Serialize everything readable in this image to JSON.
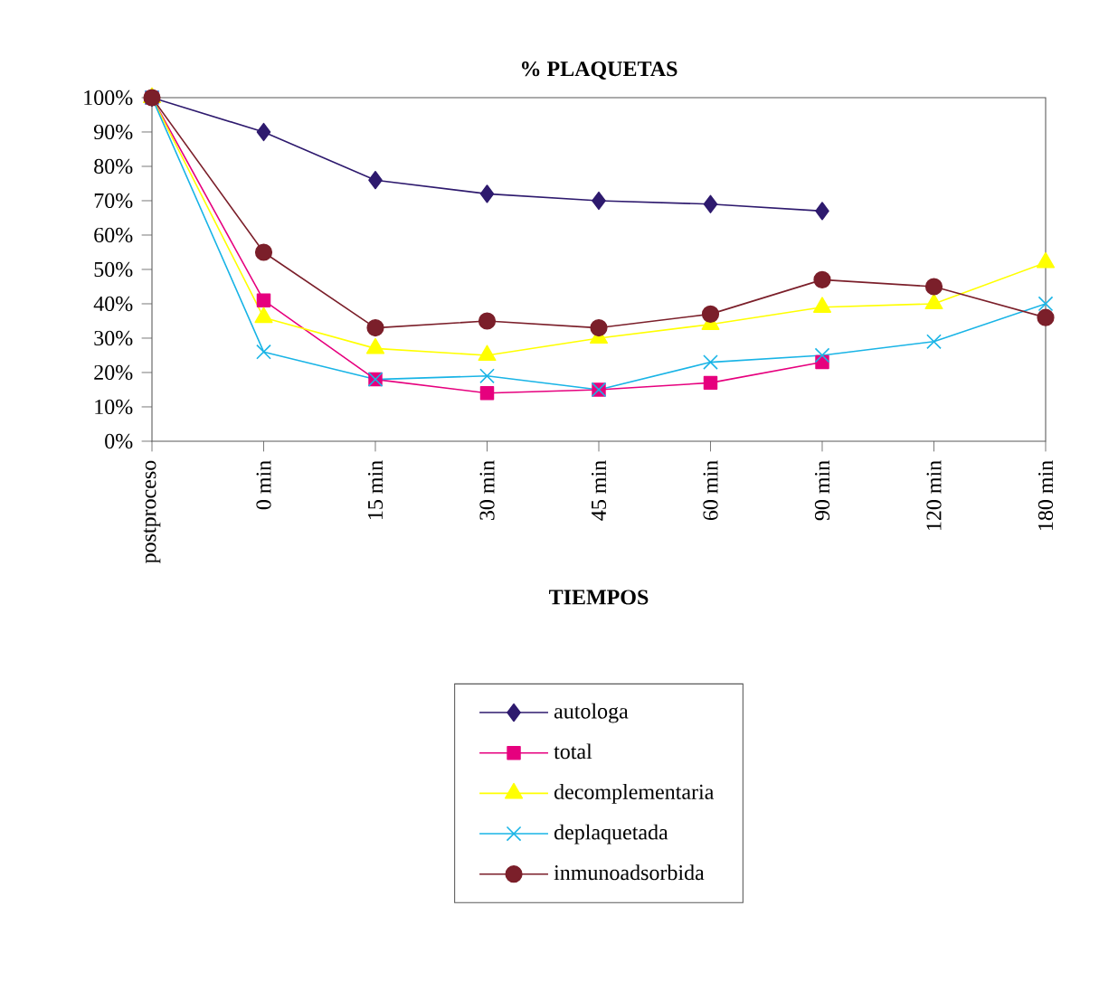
{
  "chart_data": {
    "type": "line",
    "title": "% PLAQUETAS",
    "xlabel": "TIEMPOS",
    "categories": [
      "postproceso",
      "0 min",
      "15 min",
      "30 min",
      "45 min",
      "60 min",
      "90 min",
      "120 min",
      "180 min"
    ],
    "ylim": [
      0,
      100
    ],
    "yticks": [
      {
        "value": 0,
        "label": "0%"
      },
      {
        "value": 10,
        "label": "10%"
      },
      {
        "value": 20,
        "label": "20%"
      },
      {
        "value": 30,
        "label": "30%"
      },
      {
        "value": 40,
        "label": "40%"
      },
      {
        "value": 50,
        "label": "50%"
      },
      {
        "value": 60,
        "label": "60%"
      },
      {
        "value": 70,
        "label": "70%"
      },
      {
        "value": 80,
        "label": "80%"
      },
      {
        "value": 90,
        "label": "90%"
      },
      {
        "value": 100,
        "label": "100%"
      }
    ],
    "grid": false,
    "legend": "bottom",
    "series": [
      {
        "name": "autologa",
        "color": "#2e1a6e",
        "marker": "diamond",
        "values": [
          100,
          90,
          76,
          72,
          70,
          69,
          67,
          null,
          null
        ]
      },
      {
        "name": "total",
        "color": "#e6007e",
        "marker": "square",
        "values": [
          100,
          41,
          18,
          14,
          15,
          17,
          23,
          null,
          null
        ]
      },
      {
        "name": "decomplementaria",
        "color": "#ffff00",
        "marker": "triangle",
        "values": [
          100,
          36,
          27,
          25,
          30,
          34,
          39,
          40,
          52
        ]
      },
      {
        "name": "deplaquetada",
        "color": "#19b4e6",
        "marker": "cross",
        "values": [
          100,
          26,
          18,
          19,
          15,
          23,
          25,
          29,
          40
        ]
      },
      {
        "name": "inmunoadsorbida",
        "color": "#7b1f2a",
        "marker": "circle",
        "values": [
          100,
          55,
          33,
          35,
          33,
          37,
          47,
          45,
          36
        ]
      }
    ]
  }
}
